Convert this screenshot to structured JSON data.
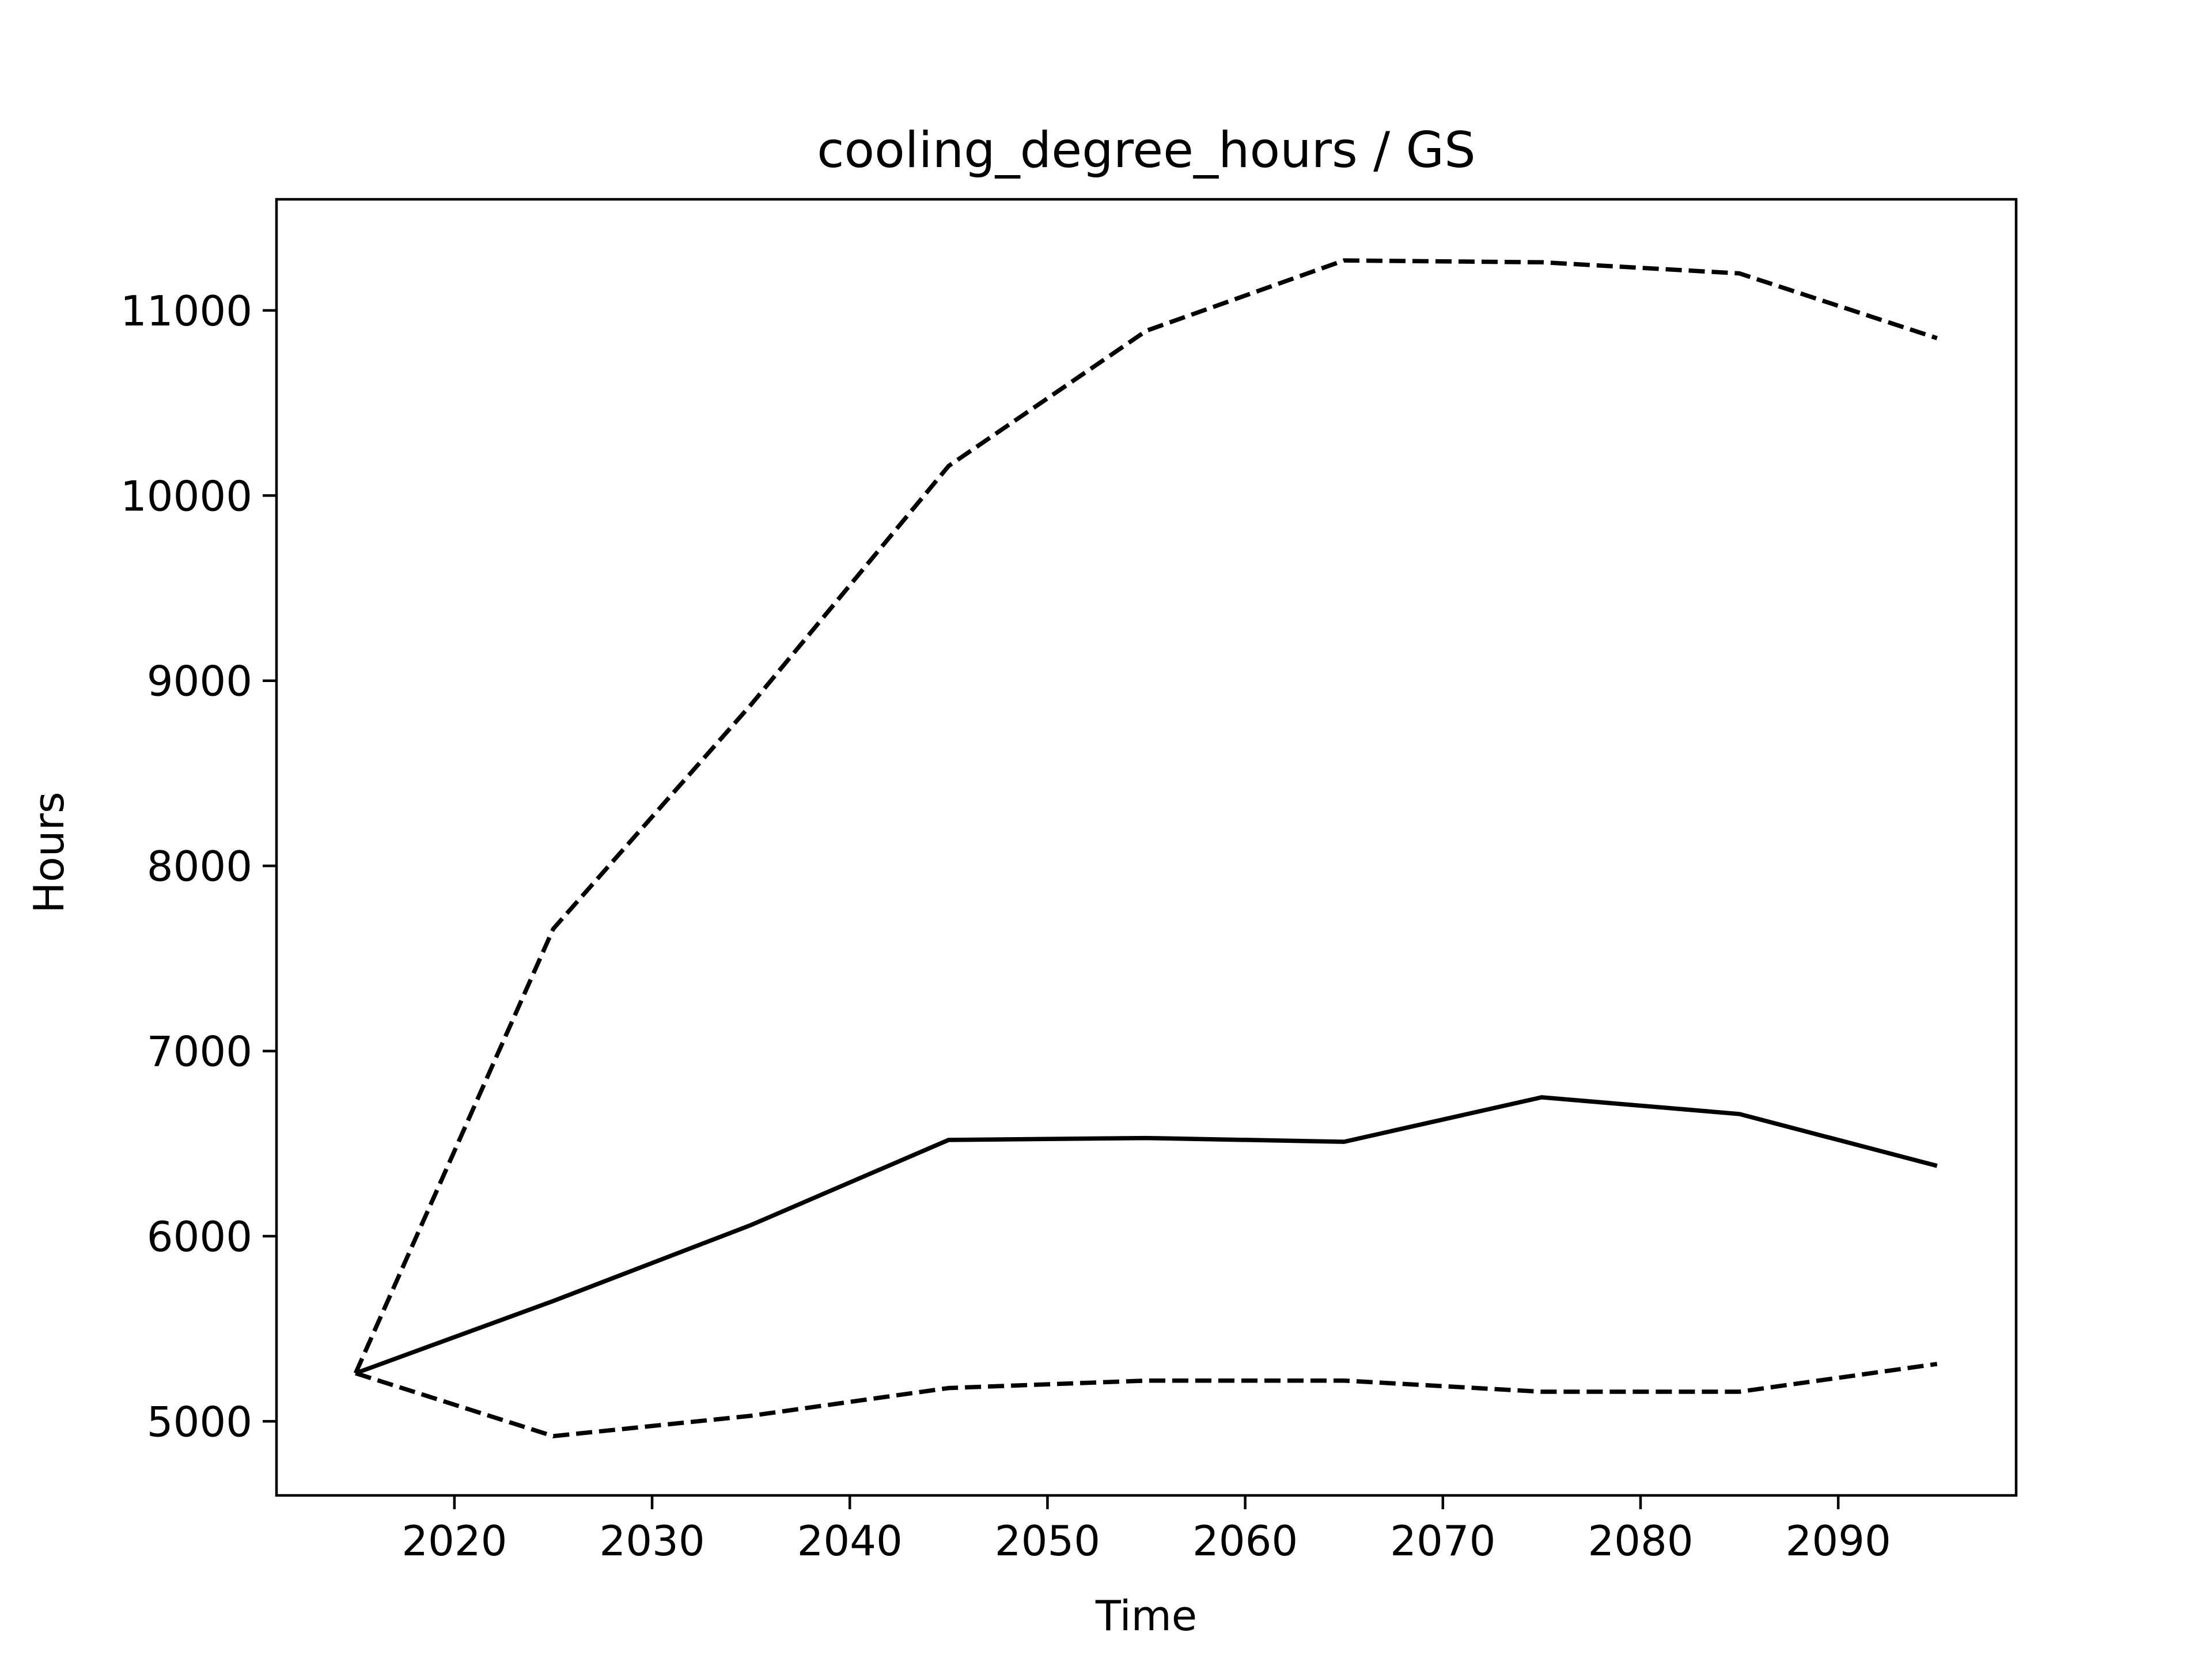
{
  "chart_data": {
    "type": "line",
    "title": "cooling_degree_hours / GS",
    "xlabel": "Time",
    "ylabel": "Hours",
    "x": [
      2015,
      2025,
      2035,
      2045,
      2055,
      2065,
      2075,
      2085,
      2095
    ],
    "xlim": [
      2011,
      2099
    ],
    "ylim": [
      4600,
      11600
    ],
    "xticks": [
      2020,
      2030,
      2040,
      2050,
      2060,
      2070,
      2080,
      2090
    ],
    "yticks": [
      5000,
      6000,
      7000,
      8000,
      9000,
      10000,
      11000
    ],
    "grid": false,
    "series": [
      {
        "style": "solid",
        "color": "#000000",
        "values": [
          5260,
          5650,
          6060,
          6520,
          6530,
          6510,
          6750,
          6660,
          6380
        ]
      },
      {
        "style": "dashed",
        "color": "#000000",
        "values": [
          5260,
          7660,
          8870,
          10160,
          10890,
          11270,
          11260,
          11200,
          10850
        ]
      },
      {
        "style": "dashed",
        "color": "#000000",
        "values": [
          5260,
          4920,
          5030,
          5180,
          5220,
          5220,
          5160,
          5160,
          5310
        ]
      }
    ]
  }
}
